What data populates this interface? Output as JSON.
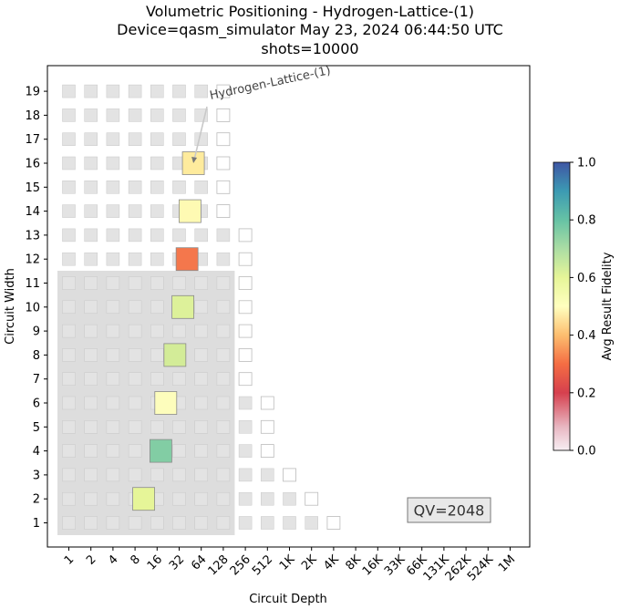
{
  "title_lines": [
    "Volumetric Positioning - Hydrogen-Lattice-(1)",
    "Device=qasm_simulator  May 23, 2024 06:44:50 UTC",
    "shots=10000"
  ],
  "chart_data": {
    "type": "heatmap",
    "xlabel": "Circuit Depth",
    "ylabel": "Circuit Width",
    "x_ticks": [
      "1",
      "2",
      "4",
      "8",
      "16",
      "32",
      "64",
      "128",
      "256",
      "512",
      "1K",
      "2K",
      "4K",
      "8K",
      "16K",
      "33K",
      "66K",
      "131K",
      "262K",
      "524K",
      "1M"
    ],
    "y_ticks": [
      "1",
      "2",
      "3",
      "4",
      "5",
      "6",
      "7",
      "8",
      "9",
      "10",
      "11",
      "12",
      "13",
      "14",
      "15",
      "16",
      "17",
      "18",
      "19"
    ],
    "colorbar": {
      "label": "Avg Result Fidelity",
      "ticks": [
        "0.0",
        "0.2",
        "0.4",
        "0.6",
        "0.8",
        "1.0"
      ],
      "range": [
        0,
        1
      ],
      "colormap": "Spectral"
    },
    "qv_label": "QV=2048",
    "annotation": "Hydrogen-Lattice-(1)",
    "qv_region": {
      "width_max": 11,
      "depth_max": 128
    },
    "background_grid": {
      "1": [
        "1",
        "2",
        "4",
        "8",
        "16",
        "32",
        "64",
        "128",
        "256",
        "512",
        "1K",
        "2K"
      ],
      "2": [
        "1",
        "2",
        "4",
        "8",
        "16",
        "32",
        "64",
        "128",
        "256",
        "512",
        "1K"
      ],
      "3": [
        "1",
        "2",
        "4",
        "8",
        "16",
        "32",
        "64",
        "128",
        "256",
        "512"
      ],
      "4": [
        "1",
        "2",
        "4",
        "8",
        "16",
        "32",
        "64",
        "128",
        "256"
      ],
      "5": [
        "1",
        "2",
        "4",
        "8",
        "16",
        "32",
        "64",
        "128",
        "256"
      ],
      "6": [
        "1",
        "2",
        "4",
        "8",
        "16",
        "32",
        "64",
        "128",
        "256"
      ],
      "7": [
        "1",
        "2",
        "4",
        "8",
        "16",
        "32",
        "64",
        "128"
      ],
      "8": [
        "1",
        "2",
        "4",
        "8",
        "16",
        "32",
        "64",
        "128"
      ],
      "9": [
        "1",
        "2",
        "4",
        "8",
        "16",
        "32",
        "64",
        "128"
      ],
      "10": [
        "1",
        "2",
        "4",
        "8",
        "16",
        "32",
        "64",
        "128"
      ],
      "11": [
        "1",
        "2",
        "4",
        "8",
        "16",
        "32",
        "64",
        "128"
      ],
      "12": [
        "1",
        "2",
        "4",
        "8",
        "16",
        "32",
        "64",
        "128"
      ],
      "13": [
        "1",
        "2",
        "4",
        "8",
        "16",
        "32",
        "64",
        "128"
      ],
      "14": [
        "1",
        "2",
        "4",
        "8",
        "16",
        "32",
        "64"
      ],
      "15": [
        "1",
        "2",
        "4",
        "8",
        "16",
        "32",
        "64"
      ],
      "16": [
        "1",
        "2",
        "4",
        "8",
        "16",
        "32",
        "64"
      ],
      "17": [
        "1",
        "2",
        "4",
        "8",
        "16",
        "32",
        "64"
      ],
      "18": [
        "1",
        "2",
        "4",
        "8",
        "16",
        "32",
        "64"
      ],
      "19": [
        "1",
        "2",
        "4",
        "8",
        "16",
        "32",
        "64"
      ]
    },
    "outline_cells": {
      "1": [
        "4K"
      ],
      "2": [
        "2K"
      ],
      "3": [
        "1K"
      ],
      "4": [
        "512"
      ],
      "5": [
        "512"
      ],
      "6": [
        "512"
      ],
      "7": [
        "256"
      ],
      "8": [
        "256"
      ],
      "9": [
        "256"
      ],
      "10": [
        "256"
      ],
      "11": [
        "256"
      ],
      "12": [
        "256"
      ],
      "13": [
        "256"
      ],
      "14": [
        "128"
      ],
      "15": [
        "128"
      ],
      "16": [
        "128"
      ],
      "17": [
        "128"
      ],
      "18": [
        "128"
      ],
      "19": [
        "128"
      ]
    },
    "points": [
      {
        "width": 2,
        "depth": 10.5,
        "fidelity": 0.57,
        "color": "#e6f598"
      },
      {
        "width": 4,
        "depth": 18,
        "fidelity": 0.78,
        "color": "#82cda4"
      },
      {
        "width": 6,
        "depth": 21,
        "fidelity": 0.47,
        "color": "#fdfdbc"
      },
      {
        "width": 8,
        "depth": 28,
        "fidelity": 0.6,
        "color": "#d3ec98"
      },
      {
        "width": 10,
        "depth": 36,
        "fidelity": 0.58,
        "color": "#ddf19a"
      },
      {
        "width": 12,
        "depth": 41,
        "fidelity": 0.2,
        "color": "#f4774c"
      },
      {
        "width": 14,
        "depth": 45,
        "fidelity": 0.45,
        "color": "#fefab3"
      },
      {
        "width": 16,
        "depth": 50,
        "fidelity": 0.4,
        "color": "#feeb9d"
      }
    ]
  }
}
